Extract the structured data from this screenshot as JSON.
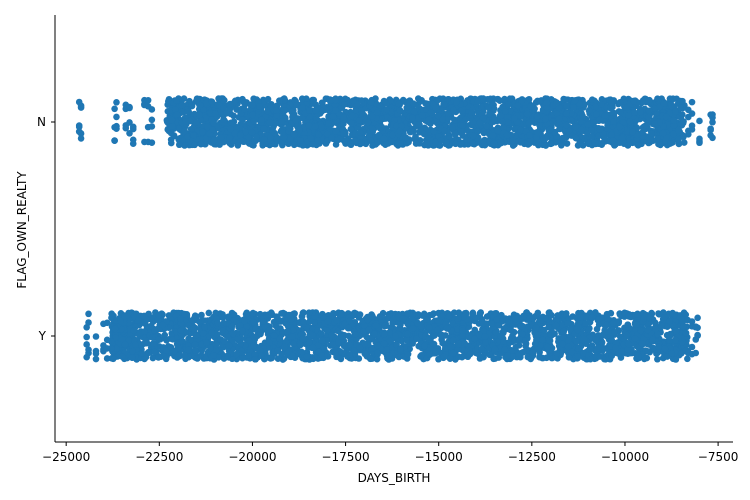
{
  "chart_data": {
    "type": "scatter",
    "subtype": "strip",
    "title": "",
    "xlabel": "DAYS_BIRTH",
    "ylabel": "FLAG_OWN_REALTY",
    "xlim": [
      -25300,
      -7100
    ],
    "x_ticks": [
      -25000,
      -22500,
      -20000,
      -17500,
      -15000,
      -12500,
      -10000,
      -7500
    ],
    "x_tick_labels": [
      "−25000",
      "−22500",
      "−20000",
      "−17500",
      "−15000",
      "−12500",
      "−10000",
      "−7500"
    ],
    "categories": [
      "N",
      "Y"
    ],
    "grid": false,
    "legend": "none",
    "color": "#1f77b4",
    "jitter": 0.11,
    "series": [
      {
        "category": "N",
        "dense_range": [
          -22300,
          -8400
        ],
        "sparse_points": [
          -24650,
          -24600,
          -23700,
          -23650,
          -23400,
          -23300,
          -23200,
          -22900,
          -22800,
          -22700,
          -8300,
          -8200,
          -8000,
          -7700,
          -7650
        ]
      },
      {
        "category": "Y",
        "dense_range": [
          -23800,
          -8300
        ],
        "sparse_points": [
          -24450,
          -24400,
          -24200,
          -24000,
          -23900,
          -8200,
          -8100,
          -8050
        ]
      }
    ]
  }
}
